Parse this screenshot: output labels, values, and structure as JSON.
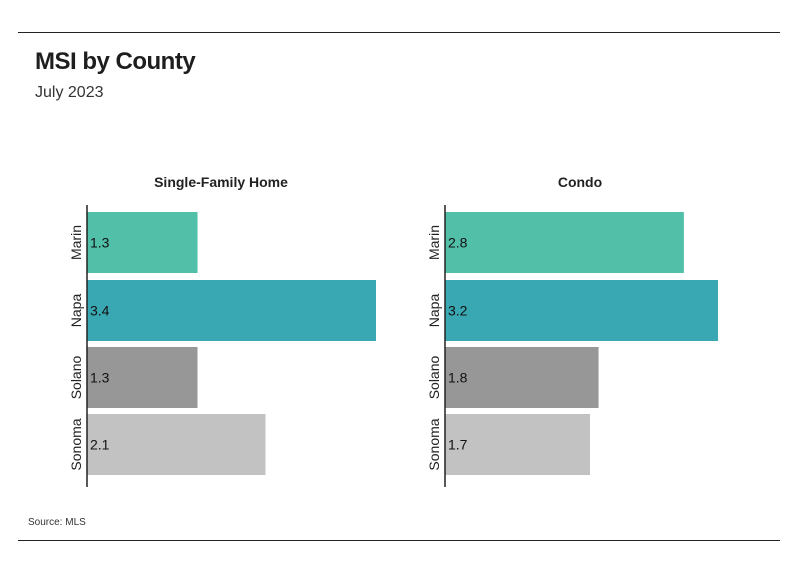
{
  "header": {
    "title": "MSI by County",
    "subtitle": "July 2023"
  },
  "footer": {
    "source": "Source:  MLS"
  },
  "colors": {
    "Marin": "#52bfa9",
    "Napa": "#3aa8b2",
    "Solano": "#979797",
    "Sonoma": "#c2c2c2",
    "axis": "#222222"
  },
  "chart_data": [
    {
      "type": "bar",
      "orientation": "horizontal",
      "title": "Single-Family Home",
      "categories": [
        "Marin",
        "Napa",
        "Solano",
        "Sonoma"
      ],
      "values": [
        1.3,
        3.4,
        1.3,
        2.1
      ],
      "xlim": [
        0,
        3.4
      ],
      "data_labels": true,
      "grid": false,
      "legend": "none"
    },
    {
      "type": "bar",
      "orientation": "horizontal",
      "title": "Condo",
      "categories": [
        "Marin",
        "Napa",
        "Solano",
        "Sonoma"
      ],
      "values": [
        2.8,
        3.2,
        1.8,
        1.7
      ],
      "xlim": [
        0,
        3.2
      ],
      "data_labels": true,
      "grid": false,
      "legend": "none"
    }
  ]
}
